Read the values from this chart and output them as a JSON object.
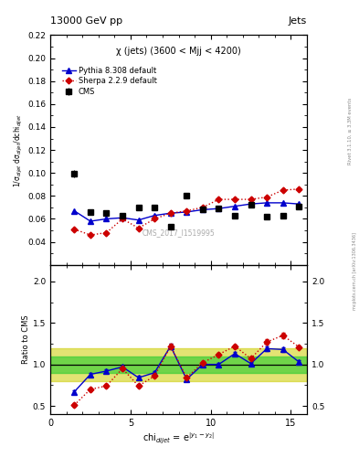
{
  "title_left": "13000 GeV pp",
  "title_right": "Jets",
  "subtitle": "χ (jets) (3600 < Mjj < 4200)",
  "watermark": "CMS_2017_I1519995",
  "right_label_top": "Rivet 3.1.10, ≥ 3.3M events",
  "right_label_bottom": "mcplots.cern.ch [arXiv:1306.3436]",
  "ylabel_main": "1/σ$_{dijet}$ dσ$_{dijet}$/dchi$_{dijet}$",
  "ylabel_ratio": "Ratio to CMS",
  "xlabel": "chi$_{dijet}$ = e$^{|y_1 - y_2|}$",
  "cms_x": [
    1.5,
    2.5,
    3.5,
    4.5,
    5.5,
    6.5,
    7.5,
    8.5,
    9.5,
    10.5,
    11.5,
    12.5,
    13.5,
    14.5,
    15.5
  ],
  "cms_y": [
    0.0995,
    0.066,
    0.065,
    0.063,
    0.07,
    0.07,
    0.053,
    0.08,
    0.068,
    0.069,
    0.063,
    0.072,
    0.062,
    0.063,
    0.071
  ],
  "cms_yerr": [
    0.003,
    0.002,
    0.002,
    0.002,
    0.002,
    0.002,
    0.002,
    0.002,
    0.002,
    0.002,
    0.002,
    0.002,
    0.002,
    0.002,
    0.002
  ],
  "pythia_x": [
    1.5,
    2.5,
    3.5,
    4.5,
    5.5,
    6.5,
    7.5,
    8.5,
    9.5,
    10.5,
    11.5,
    12.5,
    13.5,
    14.5,
    15.5
  ],
  "pythia_y": [
    0.067,
    0.058,
    0.06,
    0.061,
    0.059,
    0.063,
    0.065,
    0.066,
    0.068,
    0.069,
    0.071,
    0.073,
    0.074,
    0.074,
    0.073
  ],
  "sherpa_x": [
    1.5,
    2.5,
    3.5,
    4.5,
    5.5,
    6.5,
    7.5,
    8.5,
    9.5,
    10.5,
    11.5,
    12.5,
    13.5,
    14.5,
    15.5
  ],
  "sherpa_y": [
    0.051,
    0.046,
    0.048,
    0.06,
    0.052,
    0.06,
    0.065,
    0.067,
    0.07,
    0.077,
    0.077,
    0.077,
    0.079,
    0.085,
    0.086
  ],
  "ratio_pythia_y": [
    0.67,
    0.88,
    0.92,
    0.97,
    0.84,
    0.9,
    1.22,
    0.82,
    1.0,
    1.0,
    1.13,
    1.01,
    1.19,
    1.18,
    1.03
  ],
  "ratio_sherpa_y": [
    0.51,
    0.7,
    0.74,
    0.95,
    0.74,
    0.86,
    1.22,
    0.84,
    1.02,
    1.12,
    1.22,
    1.07,
    1.27,
    1.35,
    1.21
  ],
  "ratio_pythia_yerr": [
    0.02,
    0.02,
    0.02,
    0.02,
    0.02,
    0.02,
    0.03,
    0.02,
    0.02,
    0.02,
    0.02,
    0.02,
    0.03,
    0.03,
    0.02
  ],
  "ratio_sherpa_yerr": [
    0.02,
    0.02,
    0.02,
    0.02,
    0.02,
    0.02,
    0.03,
    0.02,
    0.02,
    0.02,
    0.02,
    0.02,
    0.03,
    0.03,
    0.02
  ],
  "band_green_low": 0.9,
  "band_green_high": 1.1,
  "band_yellow_low": 0.8,
  "band_yellow_high": 1.2,
  "ylim_main": [
    0.02,
    0.22
  ],
  "ylim_ratio": [
    0.4,
    2.2
  ],
  "xlim": [
    0,
    16
  ],
  "yticks_main": [
    0.04,
    0.06,
    0.08,
    0.1,
    0.12,
    0.14,
    0.16,
    0.18,
    0.2,
    0.22
  ],
  "yticks_ratio": [
    0.5,
    1.0,
    1.5,
    2.0
  ],
  "xticks": [
    0,
    5,
    10,
    15
  ],
  "color_cms": "#000000",
  "color_pythia": "#0000cc",
  "color_sherpa": "#cc0000",
  "color_green_band": "#33cc33",
  "color_yellow_band": "#cccc00",
  "bg_color": "#ffffff"
}
